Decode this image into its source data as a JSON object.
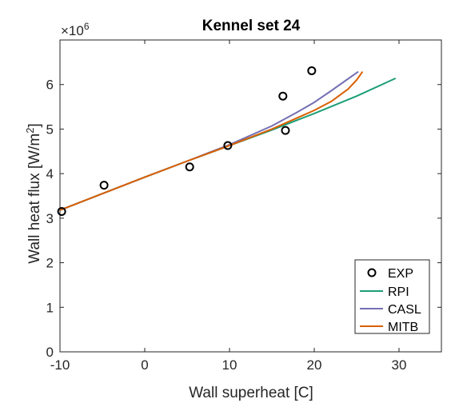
{
  "chart_data": {
    "type": "line",
    "title": "Kennel set 24",
    "xlabel": "Wall superheat [C]",
    "ylabel": "Wall heat flux [W/m",
    "ylabel_sup": "2",
    "ylabel_tail": "]",
    "y_exponent_label": "×10",
    "y_exponent": "6",
    "xlim": [
      -10,
      35
    ],
    "ylim": [
      0,
      7
    ],
    "xticks": [
      -10,
      0,
      10,
      20,
      30
    ],
    "xtick_labels": [
      "-10",
      "0",
      "10",
      "20",
      "30"
    ],
    "yticks": [
      0,
      1,
      2,
      3,
      4,
      5,
      6
    ],
    "ytick_labels": [
      "0",
      "1",
      "2",
      "3",
      "4",
      "5",
      "6"
    ],
    "grid": false,
    "legend_position": "bottom-right",
    "exp_points": {
      "name": "EXP",
      "x": [
        -9.8,
        -4.8,
        5.3,
        9.8,
        16.3,
        16.6,
        19.7
      ],
      "y": [
        3.15,
        3.74,
        4.15,
        4.63,
        5.74,
        4.97,
        6.31
      ]
    },
    "series": [
      {
        "name": "RPI",
        "color": "#1b9e77",
        "x": [
          -10,
          -5,
          0,
          5,
          10,
          15,
          20,
          25,
          29.6
        ],
        "y": [
          3.18,
          3.55,
          3.92,
          4.28,
          4.63,
          4.98,
          5.35,
          5.74,
          6.14
        ]
      },
      {
        "name": "CASL",
        "color": "#7570b3",
        "x": [
          -10,
          -5,
          0,
          5,
          10,
          15,
          18,
          20,
          22,
          24,
          25.2
        ],
        "y": [
          3.18,
          3.55,
          3.92,
          4.28,
          4.65,
          5.07,
          5.38,
          5.6,
          5.86,
          6.13,
          6.29
        ]
      },
      {
        "name": "MITB",
        "color": "#d95f02",
        "x": [
          -10,
          -5,
          0,
          5,
          10,
          15,
          20,
          22,
          24,
          25,
          25.7
        ],
        "y": [
          3.18,
          3.55,
          3.92,
          4.28,
          4.63,
          5.0,
          5.42,
          5.62,
          5.9,
          6.1,
          6.29
        ]
      }
    ]
  }
}
